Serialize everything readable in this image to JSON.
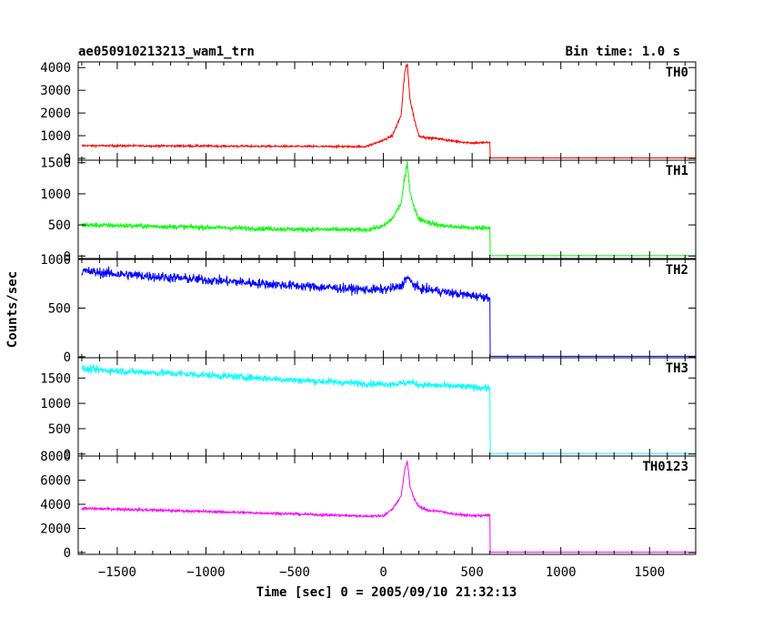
{
  "chart_data": {
    "type": "line",
    "title": "ae050910213213_wam1_trn",
    "bin_time": "Bin time: 1.0 s",
    "xlabel": "Time [sec] 0 = 2005/09/10 21:32:13",
    "ylabel": "Counts/sec",
    "xlim": [
      -1720,
      1760
    ],
    "x_ticks": [
      -1500,
      -1000,
      -500,
      0,
      500,
      1000,
      1500
    ],
    "panels": [
      {
        "name": "TH0",
        "color": "#ff0000",
        "ylim": [
          -80,
          4250
        ],
        "y_ticks": [
          0,
          1000,
          2000,
          3000,
          4000
        ],
        "x": [
          -1700,
          -1500,
          -1000,
          -500,
          -100,
          0,
          50,
          100,
          120,
          135,
          150,
          175,
          200,
          250,
          300,
          400,
          500,
          600,
          601,
          1760
        ],
        "y": [
          560,
          555,
          545,
          530,
          520,
          800,
          1000,
          1900,
          3800,
          4150,
          2600,
          1700,
          1000,
          900,
          880,
          760,
          680,
          700,
          20,
          20
        ]
      },
      {
        "name": "TH1",
        "color": "#00ff00",
        "ylim": [
          -40,
          1540
        ],
        "y_ticks": [
          0,
          500,
          1000,
          1500
        ],
        "x": [
          -1700,
          -1500,
          -1000,
          -500,
          -100,
          0,
          50,
          100,
          120,
          135,
          150,
          175,
          200,
          300,
          400,
          500,
          600,
          601,
          1760
        ],
        "y": [
          500,
          490,
          460,
          430,
          420,
          480,
          600,
          850,
          1250,
          1480,
          1050,
          750,
          600,
          500,
          470,
          450,
          460,
          5,
          5
        ]
      },
      {
        "name": "TH2",
        "color": "#0000ff",
        "ylim": [
          -10,
          1000
        ],
        "y_ticks": [
          0,
          500,
          1000
        ],
        "x": [
          -1700,
          -1500,
          -1000,
          -500,
          -100,
          0,
          100,
          130,
          160,
          200,
          300,
          400,
          500,
          600,
          601,
          1760
        ],
        "y": [
          880,
          850,
          790,
          730,
          690,
          690,
          720,
          820,
          760,
          700,
          680,
          650,
          630,
          610,
          5,
          5
        ]
      },
      {
        "name": "TH3",
        "color": "#00ffff",
        "ylim": [
          -40,
          1900
        ],
        "y_ticks": [
          0,
          500,
          1000,
          1500
        ],
        "x": [
          -1700,
          -1500,
          -1000,
          -500,
          -100,
          0,
          100,
          150,
          200,
          300,
          400,
          500,
          600,
          601,
          1760
        ],
        "y": [
          1680,
          1640,
          1560,
          1460,
          1390,
          1380,
          1390,
          1420,
          1370,
          1350,
          1340,
          1320,
          1300,
          10,
          10
        ]
      },
      {
        "name": "TH0123",
        "color": "#ff00ff",
        "ylim": [
          -150,
          8000
        ],
        "y_ticks": [
          0,
          2000,
          4000,
          6000,
          8000
        ],
        "x": [
          -1700,
          -1500,
          -1000,
          -500,
          -100,
          0,
          50,
          100,
          120,
          135,
          150,
          175,
          200,
          250,
          300,
          400,
          500,
          600,
          601,
          1760
        ],
        "y": [
          3650,
          3600,
          3400,
          3200,
          3020,
          3050,
          3600,
          4700,
          6800,
          7600,
          5500,
          4400,
          3800,
          3500,
          3450,
          3200,
          3050,
          3100,
          30,
          30
        ]
      }
    ]
  }
}
